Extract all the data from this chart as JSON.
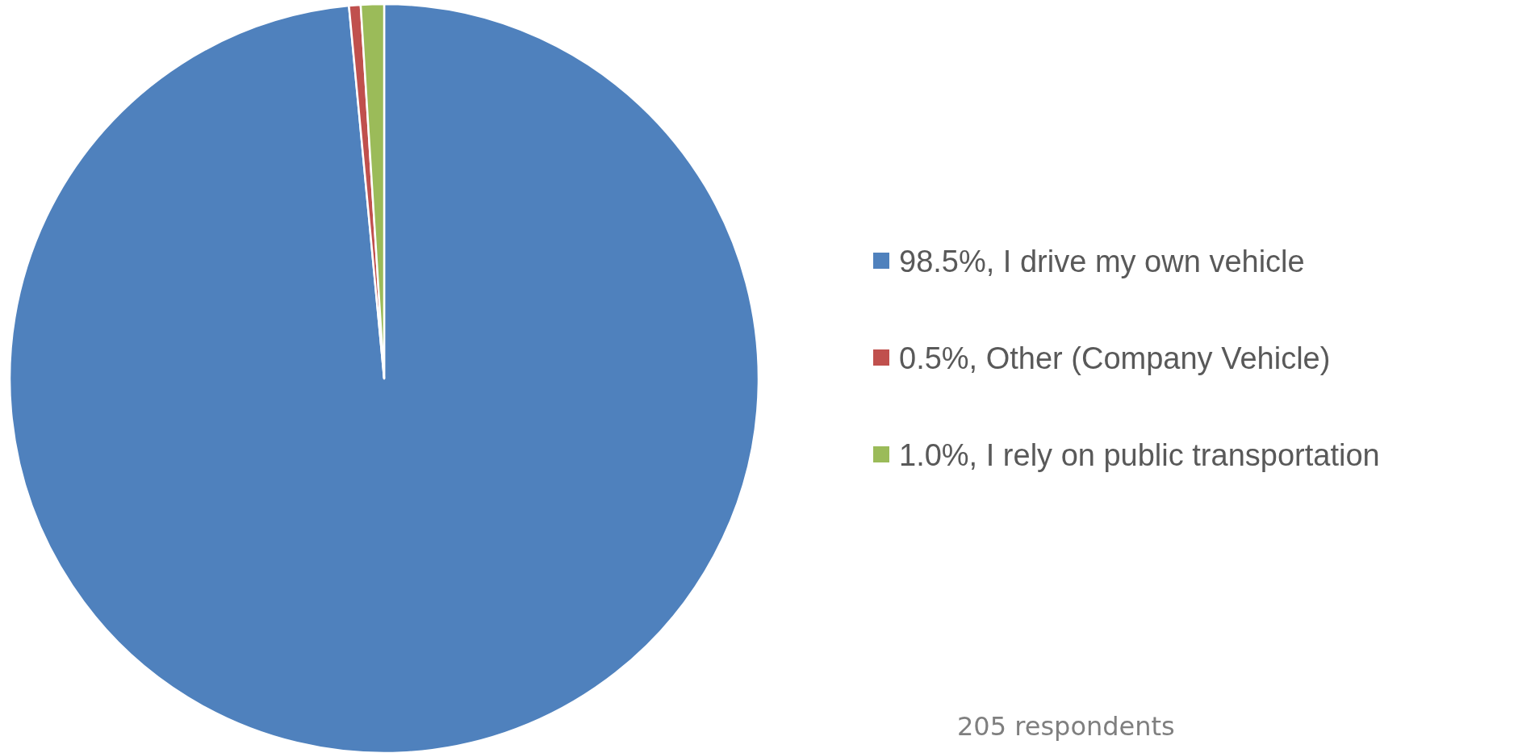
{
  "chart_data": {
    "type": "pie",
    "categories": [
      "98.5%, I drive my own vehicle",
      "0.5%, Other (Company Vehicle)",
      "1.0%, I rely on public transportation"
    ],
    "values": [
      98.5,
      0.5,
      1.0
    ],
    "colors": [
      "#4f81bd",
      "#c0504d",
      "#9bbb59"
    ],
    "legend": "right",
    "annotations": [
      "205 respondents"
    ]
  }
}
